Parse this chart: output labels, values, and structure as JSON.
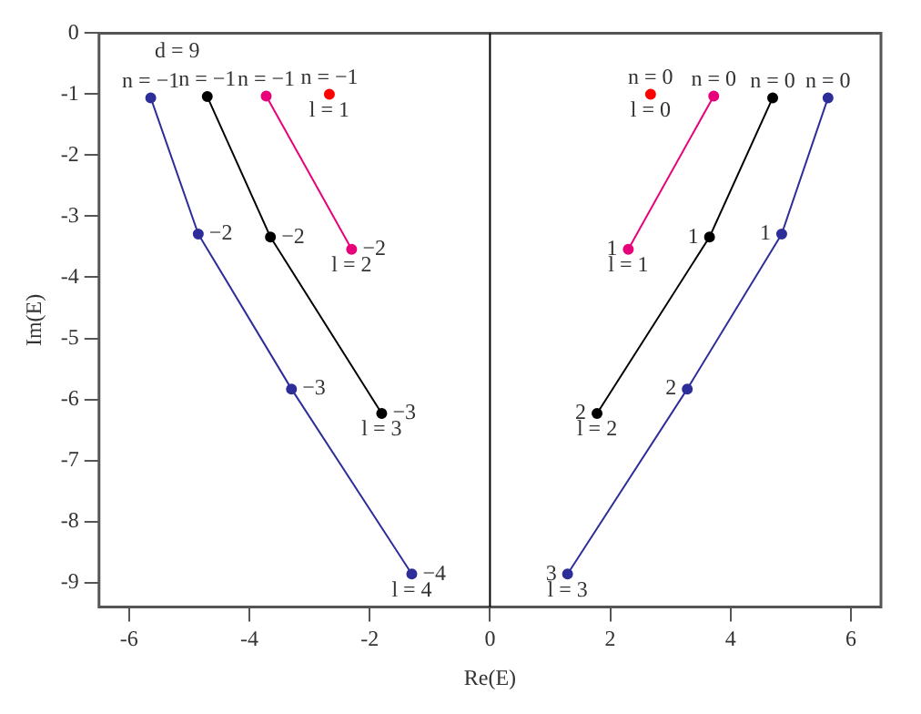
{
  "chart_data": {
    "type": "line",
    "xlabel": "Re(E)",
    "ylabel": "Im(E)",
    "xlim": [
      -6.5,
      6.5
    ],
    "ylim": [
      -9.4,
      0
    ],
    "xticks": [
      -6,
      -4,
      -2,
      0,
      2,
      4,
      6
    ],
    "yticks": [
      0,
      -1,
      -2,
      -3,
      -4,
      -5,
      -6,
      -7,
      -8,
      -9
    ],
    "grid": false,
    "legend": false,
    "marker": "circle",
    "line_style": "solid",
    "series": [
      {
        "color": "#2e2e9a",
        "x": [
          -5.64,
          -4.85,
          -3.3,
          -1.3
        ],
        "values": [
          -1.06,
          -3.29,
          -5.83,
          -8.86
        ]
      },
      {
        "color": "#000000",
        "x": [
          -4.7,
          -3.65,
          -1.8
        ],
        "values": [
          -1.04,
          -3.34,
          -6.23
        ]
      },
      {
        "color": "#e8007a",
        "x": [
          -3.72,
          -2.3
        ],
        "values": [
          -1.03,
          -3.54
        ]
      },
      {
        "type": "scatter",
        "color": "#ff0000",
        "x": [
          -2.67,
          2.67
        ],
        "values": [
          -1.0,
          -1.0
        ]
      },
      {
        "color": "#e8007a",
        "x": [
          3.72,
          2.3
        ],
        "values": [
          -1.03,
          -3.54
        ]
      },
      {
        "color": "#000000",
        "x": [
          4.7,
          3.65,
          1.78
        ],
        "values": [
          -1.06,
          -3.34,
          -6.23
        ]
      },
      {
        "color": "#2e2e9a",
        "x": [
          5.62,
          4.85,
          3.28,
          1.29
        ],
        "values": [
          -1.06,
          -3.29,
          -5.83,
          -8.86
        ]
      }
    ],
    "ref_lines": [
      {
        "axis": "x",
        "value": 0,
        "color": "#000000"
      }
    ],
    "annotations": [
      "d = 9",
      {
        "text": "n = −1",
        "x": -5.64,
        "y": -1.06
      },
      {
        "text": "n = −1",
        "x": -4.7,
        "y": -1.04
      },
      {
        "text": "n = −1",
        "x": -3.72,
        "y": -1.03
      },
      {
        "text": "n = −1",
        "x": -2.67,
        "y": -1.0
      },
      {
        "text": "l = 1",
        "x": -2.67,
        "y": -1.0
      },
      {
        "text": "−2",
        "x": -4.85,
        "y": -3.29
      },
      {
        "text": "−3",
        "x": -3.3,
        "y": -5.83
      },
      {
        "text": "−4",
        "x": -1.3,
        "y": -8.86
      },
      {
        "text": "l = 4",
        "x": -1.3,
        "y": -8.86
      },
      {
        "text": "−2",
        "x": -3.65,
        "y": -3.34
      },
      {
        "text": "−3",
        "x": -1.8,
        "y": -6.23
      },
      {
        "text": "l = 3",
        "x": -1.8,
        "y": -6.23
      },
      {
        "text": "−2",
        "x": -2.3,
        "y": -3.54
      },
      {
        "text": "l = 2",
        "x": -2.3,
        "y": -3.54
      },
      {
        "text": "n = 0",
        "x": 2.67,
        "y": -1.0
      },
      {
        "text": "l = 0",
        "x": 2.67,
        "y": -1.0
      },
      {
        "text": "n = 0",
        "x": 3.72,
        "y": -1.03
      },
      {
        "text": "n = 0",
        "x": 4.7,
        "y": -1.06
      },
      {
        "text": "n = 0",
        "x": 5.62,
        "y": -1.06
      },
      {
        "text": "1",
        "x": 2.3,
        "y": -3.54
      },
      {
        "text": "l = 1",
        "x": 2.3,
        "y": -3.54
      },
      {
        "text": "1",
        "x": 3.65,
        "y": -3.34
      },
      {
        "text": "2",
        "x": 1.78,
        "y": -6.23
      },
      {
        "text": "l = 2",
        "x": 1.78,
        "y": -6.23
      },
      {
        "text": "1",
        "x": 4.85,
        "y": -3.29
      },
      {
        "text": "2",
        "x": 3.28,
        "y": -5.83
      },
      {
        "text": "3",
        "x": 1.29,
        "y": -8.86
      },
      {
        "text": "l = 3",
        "x": 1.29,
        "y": -8.86
      }
    ]
  }
}
